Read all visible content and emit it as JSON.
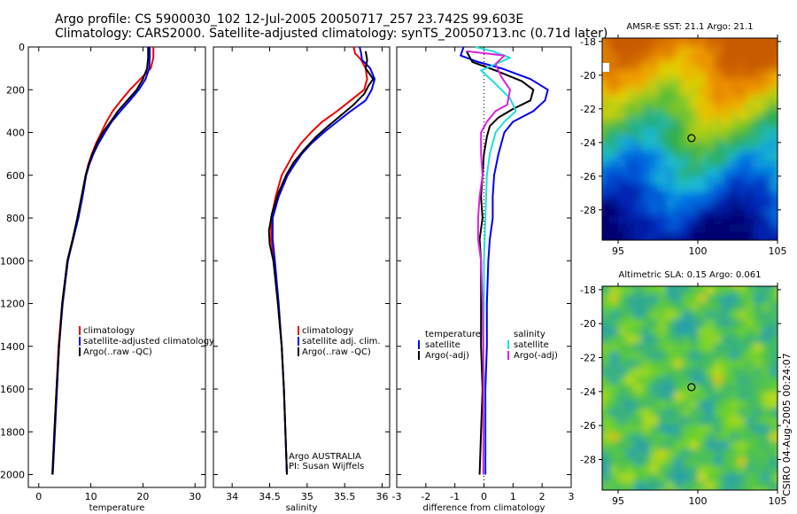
{
  "title": {
    "line1": "Argo profile: CS 5900030_102 12-Jul-2005 20050717_257 23.742S 99.603E",
    "line2": "Climatology: CARS2000. Satellite-adjusted climatology: synTS_20050713.nc (0.71d later)"
  },
  "side_label": "CSIRO 04-Aug-2005 00:24:07",
  "colors": {
    "climatology": "#ee0000",
    "satellite": "#0000ee",
    "argo": "#000000",
    "sat_salinity": "#22dddd",
    "argo_salinity": "#dd22dd"
  },
  "chart_data": [
    {
      "type": "line",
      "name": "temperature-panel",
      "xlabel": "temperature",
      "ylabel": "",
      "xlim": [
        -2,
        32
      ],
      "ylim": [
        2060,
        0
      ],
      "xticks": [
        "0",
        "10",
        "20",
        "30"
      ],
      "xtick_values": [
        0,
        10,
        20,
        30
      ],
      "yticks": [
        "0",
        "200",
        "400",
        "600",
        "800",
        "1000",
        "1200",
        "1400",
        "1600",
        "1800",
        "2000"
      ],
      "ytick_values": [
        0,
        200,
        400,
        600,
        800,
        1000,
        1200,
        1400,
        1600,
        1800,
        2000
      ],
      "legend": [
        "climatology",
        "satellite-adjusted climatology",
        "Argo(..raw -QC)"
      ],
      "series": [
        {
          "name": "climatology",
          "color": "climatology",
          "points": [
            [
              22.0,
              0
            ],
            [
              22.0,
              50
            ],
            [
              21.5,
              100
            ],
            [
              19.5,
              150
            ],
            [
              17.5,
              200
            ],
            [
              15.8,
              250
            ],
            [
              14.2,
              300
            ],
            [
              13.0,
              350
            ],
            [
              12.0,
              400
            ],
            [
              11.0,
              450
            ],
            [
              10.2,
              500
            ],
            [
              9.5,
              550
            ],
            [
              9.0,
              600
            ],
            [
              8.3,
              700
            ],
            [
              7.5,
              800
            ],
            [
              6.5,
              900
            ],
            [
              5.5,
              1000
            ],
            [
              4.5,
              1200
            ],
            [
              3.8,
              1400
            ],
            [
              3.4,
              1600
            ],
            [
              3.0,
              1800
            ],
            [
              2.6,
              2000
            ]
          ]
        },
        {
          "name": "satellite-adjusted climatology",
          "color": "satellite",
          "points": [
            [
              21.3,
              0
            ],
            [
              21.3,
              50
            ],
            [
              21.2,
              100
            ],
            [
              20.5,
              150
            ],
            [
              19.2,
              200
            ],
            [
              17.5,
              250
            ],
            [
              15.7,
              300
            ],
            [
              14.0,
              350
            ],
            [
              12.7,
              400
            ],
            [
              11.5,
              450
            ],
            [
              10.5,
              500
            ],
            [
              9.7,
              550
            ],
            [
              9.1,
              600
            ],
            [
              8.4,
              700
            ],
            [
              7.6,
              800
            ],
            [
              6.6,
              900
            ],
            [
              5.6,
              1000
            ],
            [
              4.6,
              1200
            ],
            [
              3.9,
              1400
            ],
            [
              3.5,
              1600
            ],
            [
              3.1,
              1800
            ],
            [
              2.7,
              2000
            ]
          ]
        },
        {
          "name": "Argo(..raw -QC)",
          "color": "argo",
          "points": [
            [
              21.0,
              0
            ],
            [
              21.0,
              50
            ],
            [
              20.8,
              100
            ],
            [
              20.0,
              150
            ],
            [
              18.8,
              200
            ],
            [
              17.0,
              250
            ],
            [
              15.2,
              300
            ],
            [
              13.8,
              350
            ],
            [
              12.3,
              400
            ],
            [
              11.2,
              450
            ],
            [
              10.3,
              500
            ],
            [
              9.6,
              550
            ],
            [
              9.0,
              600
            ],
            [
              8.2,
              700
            ],
            [
              7.4,
              800
            ],
            [
              6.5,
              900
            ],
            [
              5.5,
              1000
            ],
            [
              4.5,
              1200
            ],
            [
              3.9,
              1400
            ],
            [
              3.4,
              1600
            ],
            [
              3.0,
              1800
            ],
            [
              2.6,
              2000
            ]
          ]
        }
      ]
    },
    {
      "type": "line",
      "name": "salinity-panel",
      "xlabel": "salinity",
      "xlim": [
        33.75,
        36.1
      ],
      "ylim": [
        2060,
        0
      ],
      "xticks": [
        "34",
        "34.5",
        "35",
        "35.5",
        "36"
      ],
      "xtick_values": [
        34,
        34.5,
        35,
        35.5,
        36
      ],
      "legend": [
        "climatology",
        "satellite adj. clim.",
        "Argo(..raw -QC)"
      ],
      "annotations": [
        "Argo AUSTRALIA",
        "PI: Susan Wijffels"
      ],
      "series": [
        {
          "name": "climatology",
          "color": "climatology",
          "points": [
            [
              35.62,
              0
            ],
            [
              35.64,
              30
            ],
            [
              35.72,
              60
            ],
            [
              35.78,
              100
            ],
            [
              35.8,
              150
            ],
            [
              35.76,
              200
            ],
            [
              35.58,
              250
            ],
            [
              35.4,
              300
            ],
            [
              35.2,
              350
            ],
            [
              35.05,
              400
            ],
            [
              34.92,
              450
            ],
            [
              34.82,
              500
            ],
            [
              34.74,
              550
            ],
            [
              34.66,
              600
            ],
            [
              34.58,
              700
            ],
            [
              34.52,
              800
            ],
            [
              34.52,
              900
            ],
            [
              34.56,
              1000
            ],
            [
              34.61,
              1200
            ],
            [
              34.66,
              1400
            ],
            [
              34.69,
              1600
            ],
            [
              34.71,
              1800
            ],
            [
              34.73,
              2000
            ]
          ]
        },
        {
          "name": "satellite adj. clim.",
          "color": "satellite",
          "points": [
            [
              35.7,
              0
            ],
            [
              35.72,
              30
            ],
            [
              35.73,
              60
            ],
            [
              35.84,
              100
            ],
            [
              35.9,
              150
            ],
            [
              35.86,
              200
            ],
            [
              35.78,
              250
            ],
            [
              35.58,
              300
            ],
            [
              35.4,
              350
            ],
            [
              35.22,
              400
            ],
            [
              35.06,
              450
            ],
            [
              34.93,
              500
            ],
            [
              34.83,
              550
            ],
            [
              34.74,
              600
            ],
            [
              34.62,
              700
            ],
            [
              34.54,
              800
            ],
            [
              34.54,
              900
            ],
            [
              34.57,
              1000
            ],
            [
              34.62,
              1200
            ],
            [
              34.66,
              1400
            ],
            [
              34.69,
              1600
            ],
            [
              34.71,
              1800
            ],
            [
              34.73,
              2000
            ]
          ]
        },
        {
          "name": "Argo(..raw -QC)",
          "color": "argo",
          "points": [
            [
              35.78,
              20
            ],
            [
              35.8,
              60
            ],
            [
              35.78,
              100
            ],
            [
              35.88,
              150
            ],
            [
              35.82,
              180
            ],
            [
              35.76,
              220
            ],
            [
              35.62,
              270
            ],
            [
              35.45,
              320
            ],
            [
              35.28,
              370
            ],
            [
              35.12,
              420
            ],
            [
              34.96,
              480
            ],
            [
              34.82,
              540
            ],
            [
              34.72,
              600
            ],
            [
              34.62,
              680
            ],
            [
              34.53,
              780
            ],
            [
              34.49,
              860
            ],
            [
              34.5,
              920
            ],
            [
              34.55,
              1000
            ],
            [
              34.61,
              1200
            ],
            [
              34.66,
              1400
            ],
            [
              34.69,
              1600
            ],
            [
              34.71,
              1800
            ],
            [
              34.73,
              2000
            ]
          ]
        }
      ]
    },
    {
      "type": "line",
      "name": "difference-panel",
      "xlabel": "difference from climatology",
      "xlim": [
        -3,
        3
      ],
      "ylim": [
        2060,
        0
      ],
      "xticks": [
        "-3",
        "-2",
        "-1",
        "0",
        "1",
        "2",
        "3"
      ],
      "xtick_values": [
        -3,
        -2,
        -1,
        0,
        1,
        2,
        3
      ],
      "legend": [
        "temperature",
        "satellite",
        "Argo(-adj)",
        "salinity",
        "satellite",
        "Argo(-adj)"
      ],
      "series": [
        {
          "name": "temperature satellite",
          "color": "satellite",
          "points": [
            [
              -0.7,
              0
            ],
            [
              -0.8,
              40
            ],
            [
              -0.2,
              70
            ],
            [
              0.6,
              100
            ],
            [
              1.6,
              150
            ],
            [
              2.2,
              200
            ],
            [
              2.1,
              250
            ],
            [
              1.7,
              300
            ],
            [
              1.0,
              350
            ],
            [
              0.7,
              400
            ],
            [
              0.5,
              500
            ],
            [
              0.35,
              600
            ],
            [
              0.3,
              700
            ],
            [
              0.3,
              800
            ],
            [
              0.2,
              900
            ],
            [
              0.15,
              1000
            ],
            [
              0.1,
              1200
            ],
            [
              0.1,
              1400
            ],
            [
              0.05,
              1600
            ],
            [
              0.05,
              1800
            ],
            [
              0.05,
              2000
            ]
          ]
        },
        {
          "name": "temperature Argo(-adj)",
          "color": "argo",
          "points": [
            [
              -0.6,
              20
            ],
            [
              -0.4,
              70
            ],
            [
              0.4,
              110
            ],
            [
              1.3,
              160
            ],
            [
              1.7,
              200
            ],
            [
              1.6,
              250
            ],
            [
              1.0,
              290
            ],
            [
              0.5,
              330
            ],
            [
              0.2,
              370
            ],
            [
              0.1,
              420
            ],
            [
              0.0,
              500
            ],
            [
              -0.05,
              600
            ],
            [
              -0.1,
              700
            ],
            [
              -0.05,
              800
            ],
            [
              -0.15,
              900
            ],
            [
              -0.1,
              1000
            ],
            [
              -0.1,
              1200
            ],
            [
              -0.1,
              1400
            ],
            [
              -0.05,
              1600
            ],
            [
              -0.1,
              1800
            ],
            [
              -0.15,
              2000
            ]
          ]
        },
        {
          "name": "salinity satellite",
          "color": "sat_salinity",
          "points": [
            [
              -0.3,
              0
            ],
            [
              0.3,
              20
            ],
            [
              0.9,
              50
            ],
            [
              0.4,
              80
            ],
            [
              -0.1,
              110
            ],
            [
              0.3,
              160
            ],
            [
              0.9,
              240
            ],
            [
              1.1,
              300
            ],
            [
              0.7,
              350
            ],
            [
              0.4,
              400
            ],
            [
              0.2,
              500
            ],
            [
              0.1,
              600
            ],
            [
              0.05,
              800
            ],
            [
              0.0,
              1000
            ],
            [
              0.0,
              1200
            ],
            [
              -0.02,
              1400
            ],
            [
              0.0,
              1600
            ],
            [
              0.0,
              1800
            ],
            [
              0.0,
              2000
            ]
          ]
        },
        {
          "name": "salinity Argo(-adj)",
          "color": "argo_salinity",
          "points": [
            [
              -0.6,
              20
            ],
            [
              0.7,
              40
            ],
            [
              0.4,
              80
            ],
            [
              0.6,
              140
            ],
            [
              0.9,
              200
            ],
            [
              0.8,
              270
            ],
            [
              0.4,
              300
            ],
            [
              0.1,
              350
            ],
            [
              -0.1,
              400
            ],
            [
              -0.1,
              500
            ],
            [
              -0.05,
              600
            ],
            [
              -0.15,
              700
            ],
            [
              -0.2,
              800
            ],
            [
              -0.2,
              900
            ],
            [
              -0.1,
              1000
            ],
            [
              -0.05,
              1200
            ],
            [
              -0.02,
              1400
            ],
            [
              -0.02,
              1600
            ],
            [
              -0.02,
              1800
            ],
            [
              -0.02,
              2000
            ]
          ]
        }
      ]
    },
    {
      "type": "heatmap",
      "name": "sst-map",
      "title": "AMSR-E SST: 21.1 Argo: 21.1",
      "xlim": [
        94,
        105
      ],
      "ylim": [
        -29.8,
        -17.8
      ],
      "xticks": [
        "95",
        "100",
        "105"
      ],
      "xtick_values": [
        95,
        100,
        105
      ],
      "yticks": [
        "-18",
        "-20",
        "-22",
        "-24",
        "-26",
        "-28"
      ],
      "ytick_values": [
        -18,
        -20,
        -22,
        -24,
        -26,
        -28
      ],
      "marker": {
        "lon": 99.603,
        "lat": -23.742
      }
    },
    {
      "type": "heatmap",
      "name": "sla-map",
      "title": "Altimetric SLA: 0.15 Argo: 0.061",
      "xlim": [
        94,
        105
      ],
      "ylim": [
        -29.8,
        -17.8
      ],
      "xticks": [
        "95",
        "100",
        "105"
      ],
      "xtick_values": [
        95,
        100,
        105
      ],
      "yticks": [
        "-18",
        "-20",
        "-22",
        "-24",
        "-26",
        "-28"
      ],
      "ytick_values": [
        -18,
        -20,
        -22,
        -24,
        -26,
        -28
      ],
      "marker": {
        "lon": 99.603,
        "lat": -23.742
      }
    }
  ]
}
